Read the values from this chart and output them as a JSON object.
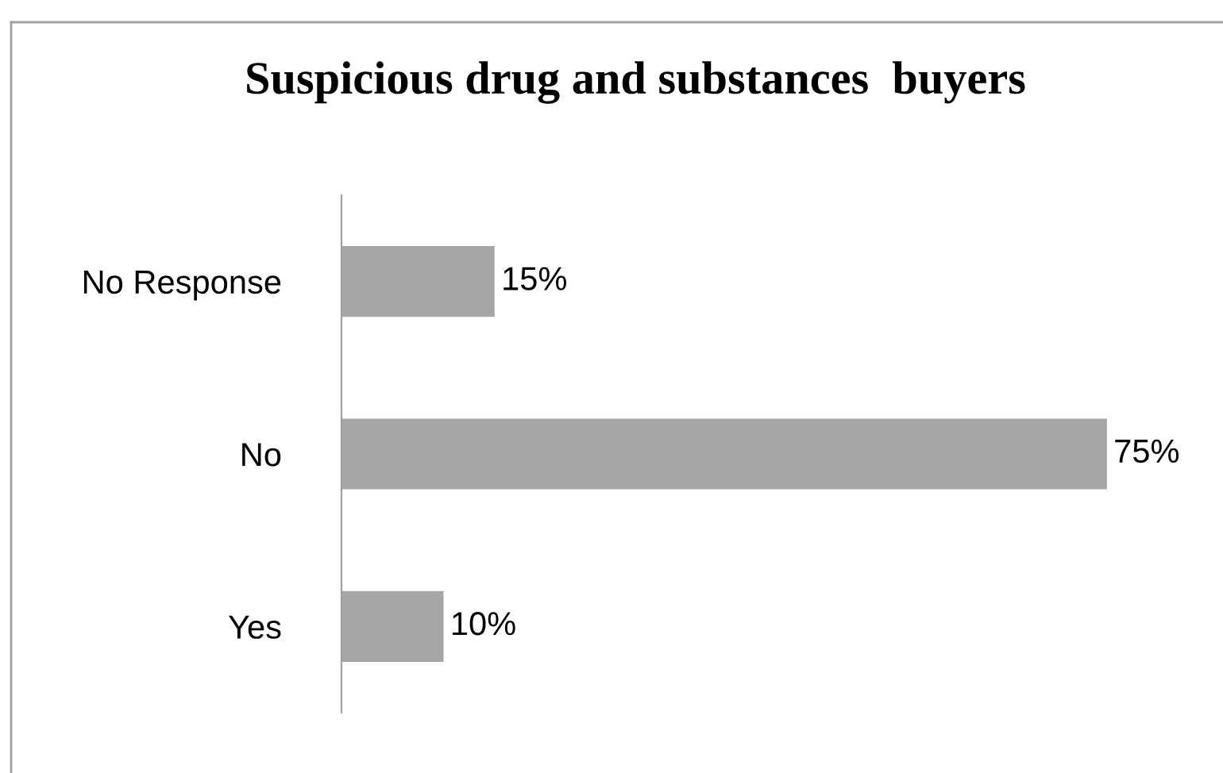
{
  "chart_data": {
    "type": "bar",
    "orientation": "horizontal",
    "title": "Suspicious drug and substances  buyers",
    "categories": [
      "No Response",
      "No",
      "Yes"
    ],
    "values": [
      15,
      75,
      10
    ],
    "color": "#a6a6a6",
    "value_labels": [
      "15%",
      "75%",
      "10%"
    ],
    "tick_labels": "y"
  }
}
